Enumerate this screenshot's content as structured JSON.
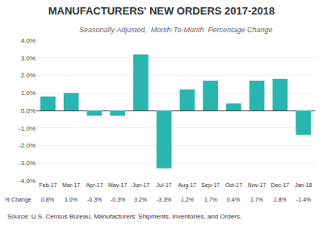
{
  "chart_data": {
    "type": "bar",
    "title": "MANUFACTURERS' NEW ORDERS 2017-2018",
    "subtitle": "Seasonally Adjusted,  Month-To-Month  Percentage Change",
    "categories": [
      "Feb-17",
      "Mar-17",
      "Apr-17",
      "May-17",
      "Jun-17",
      "Jul-17",
      "Aug-17",
      "Sep-17",
      "Oct-17",
      "Nov-17",
      "Dec-17",
      "Jan-18"
    ],
    "values": [
      0.8,
      1.0,
      -0.3,
      -0.3,
      3.2,
      -3.3,
      1.2,
      1.7,
      0.4,
      1.7,
      1.8,
      -1.4
    ],
    "value_labels": [
      "0.8%",
      "1.0%",
      "-0.3%",
      "-0.3%",
      "3.2%",
      "-3.3%",
      "1.2%",
      "1.7%",
      "0.4%",
      "1.7%",
      "1.8%",
      "-1.4%"
    ],
    "color": "#2ab5b0",
    "ylim": [
      -4.0,
      4.0
    ],
    "yticks": [
      {
        "value": -4.0,
        "label": "-4.0%"
      },
      {
        "value": -3.0,
        "label": "-3.0%"
      },
      {
        "value": -2.0,
        "label": "-2.0%"
      },
      {
        "value": -1.0,
        "label": "-1.0%"
      },
      {
        "value": 0.0,
        "label": "0.0%"
      },
      {
        "value": 1.0,
        "label": "1.0%"
      },
      {
        "value": 2.0,
        "label": "2.0%"
      },
      {
        "value": 3.0,
        "label": "3.0%"
      },
      {
        "value": 4.0,
        "label": "4.0%"
      }
    ],
    "grid": true,
    "annotations": [
      "% Change",
      "Source: U.S. Census Bureau, Manufacturers' Shipments, Inventories, and Orders,"
    ]
  }
}
